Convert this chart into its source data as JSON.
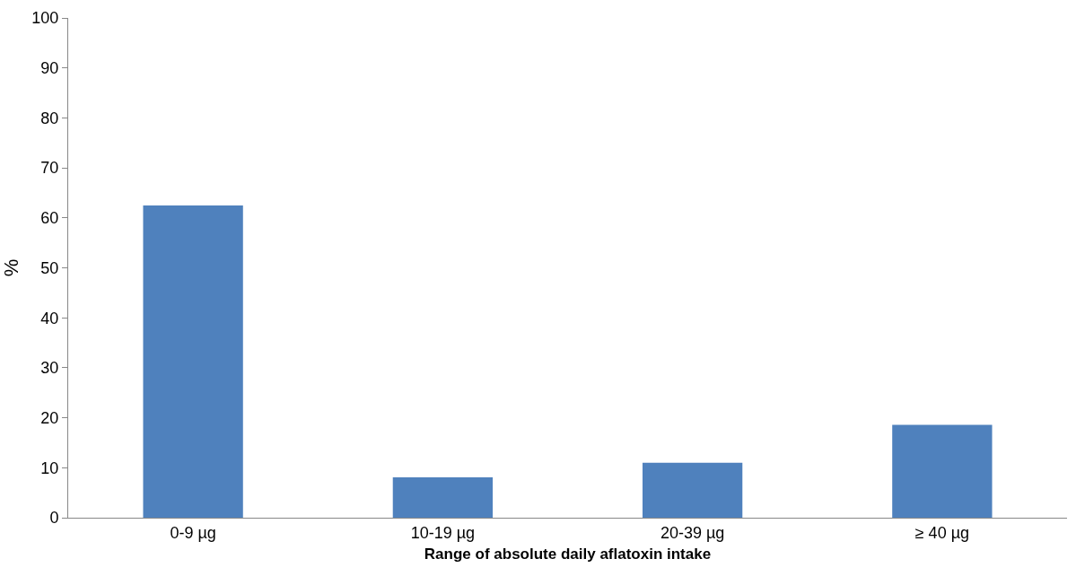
{
  "chart_data": {
    "type": "bar",
    "xlabel": "Range of absolute daily aflatoxin intake",
    "ylabel": "%",
    "categories": [
      "0-9 µg",
      "10-19 µg",
      "20-39 µg",
      "≥ 40 µg"
    ],
    "values": [
      62.5,
      8.1,
      11.0,
      18.6
    ],
    "color": "#4f81bd",
    "ylim": [
      0,
      100
    ],
    "yticks": [
      0,
      10,
      20,
      30,
      40,
      50,
      60,
      70,
      80,
      90,
      100
    ],
    "grid": false
  }
}
